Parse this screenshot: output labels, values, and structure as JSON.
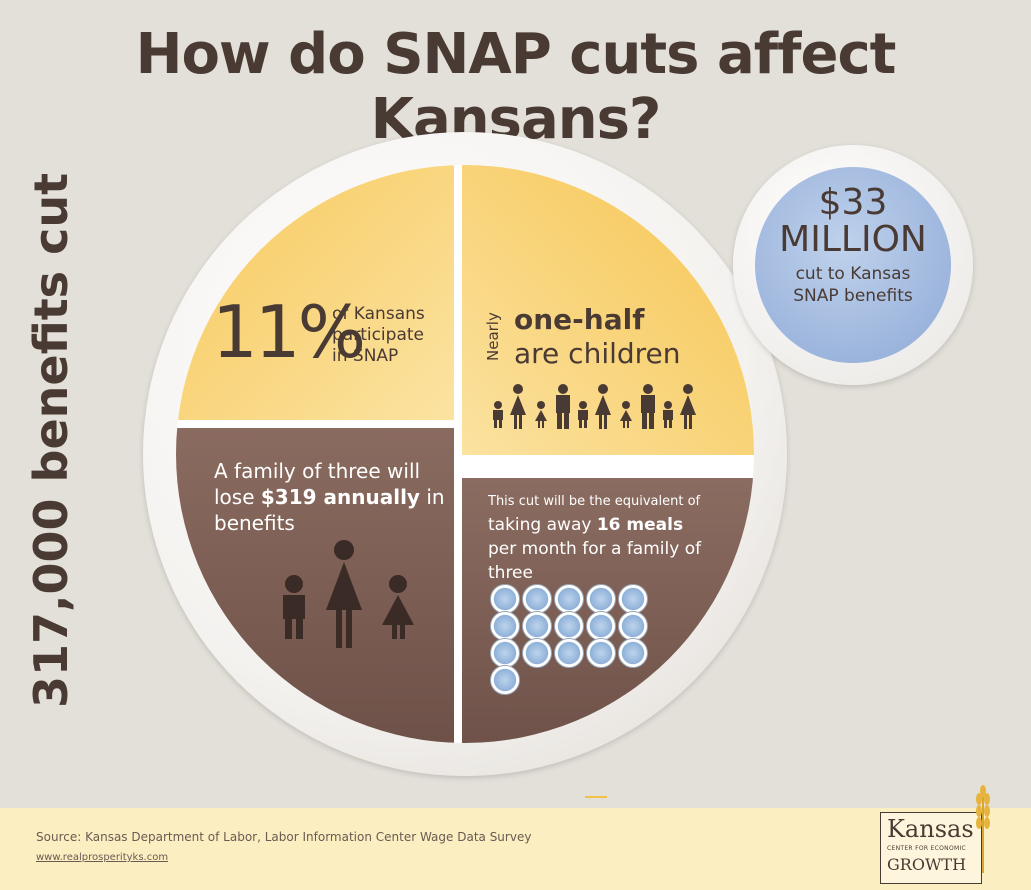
{
  "title": "How do SNAP cuts affect Kansans?",
  "side_label": "317,000 benefits cut",
  "plate": {
    "top_left": {
      "percent": "11%",
      "desc": "of Kansans participate in SNAP"
    },
    "top_right": {
      "prefix": "Nearly",
      "line1": "one-half",
      "line2": "are children"
    },
    "bottom_left": {
      "text_before": "A family of three will lose ",
      "bold": "$319 annually",
      "text_after": " in benefits"
    },
    "bottom_right": {
      "small": "This cut will be the equivalent of",
      "before": "taking away ",
      "bold": "16 meals",
      "after": " per month for a family of three",
      "meal_count": 16
    }
  },
  "badge": {
    "amount": "$33",
    "unit": "MILLION",
    "desc": "cut to Kansas SNAP benefits"
  },
  "footer": {
    "source": "Source: Kansas Department of Labor, Labor Information Center Wage Data Survey",
    "url": "www.realprosperityks.com"
  },
  "logo": {
    "name": "Kansas",
    "tagline": "CENTER FOR ECONOMIC",
    "sub": "GROWTH"
  },
  "colors": {
    "brown": "#4a3a34",
    "gold": "#f7c95d",
    "blue": "#8ea9d6",
    "footer": "#fbefc2"
  }
}
